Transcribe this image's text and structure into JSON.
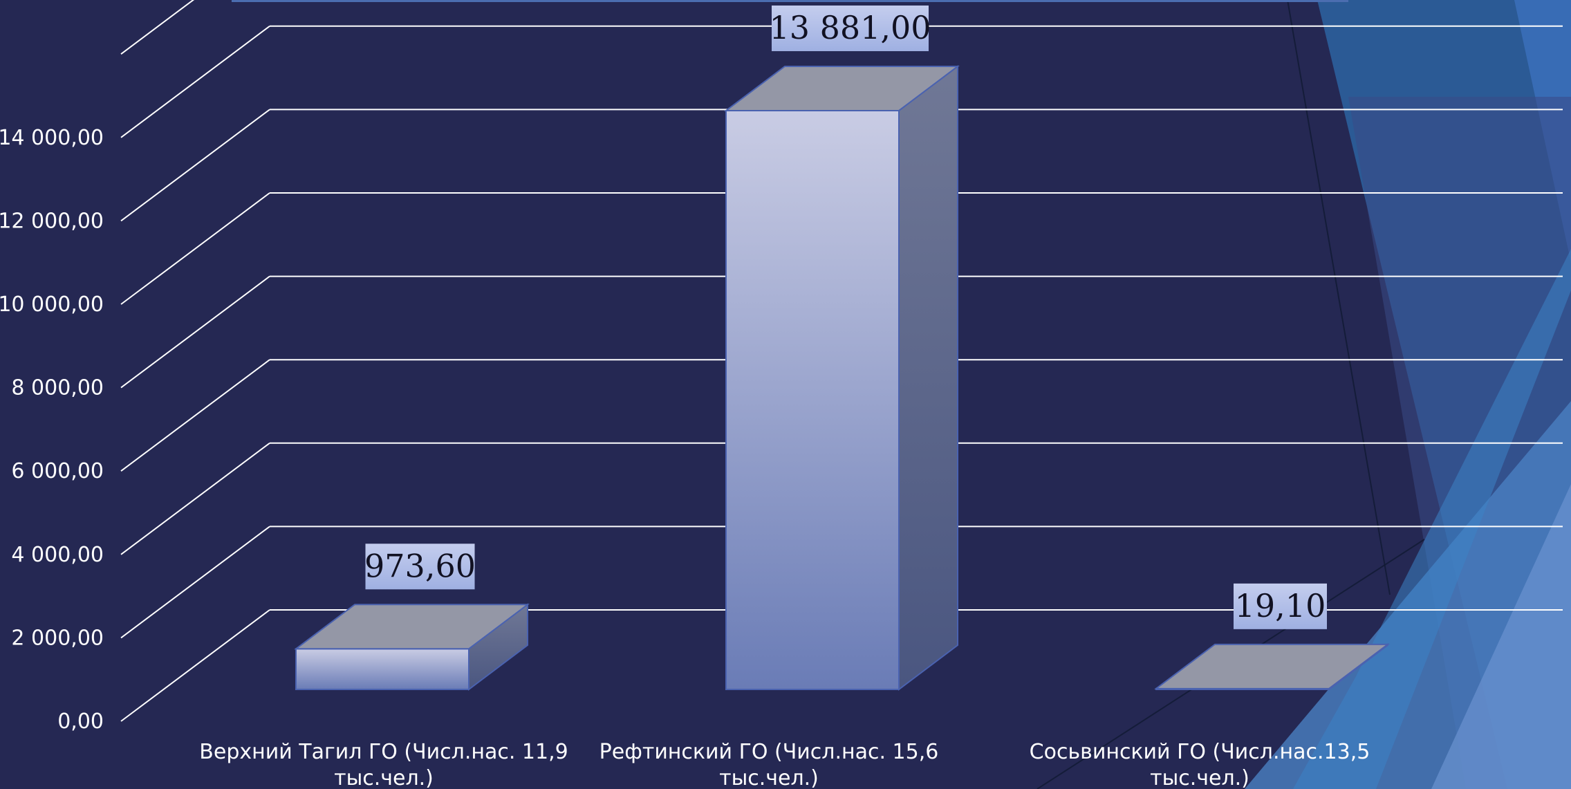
{
  "chart_data": {
    "type": "bar",
    "three_d": true,
    "categories": [
      [
        "Верхний Тагил ГО (Числ.нас. 11,9",
        "тыс.чел.)"
      ],
      [
        "Рефтинский ГО (Числ.нас. 15,6",
        "тыс.чел.)"
      ],
      [
        "Сосьвинский ГО (Числ.нас.13,5",
        "тыс.чел.)"
      ]
    ],
    "values": [
      973.6,
      13881.0,
      19.1
    ],
    "data_labels": [
      "973,60",
      "13 881,00",
      "19,10"
    ],
    "y_ticks": [
      "0,00",
      "2 000,00",
      "4 000,00",
      "6 000,00",
      "8 000,00",
      "10 000,00",
      "12 000,00",
      "14 000,00"
    ],
    "ylim": [
      0,
      16000
    ],
    "grid": true,
    "legend": "none",
    "title": "",
    "xlabel": "",
    "ylabel": ""
  },
  "colors": {
    "background": "#252853",
    "bar_front_top": "#c9cce4",
    "bar_front_bottom": "#6a7cb6",
    "bar_top": "#9497a6",
    "bar_side": "#55628a",
    "label_box": "#b3c1ea",
    "grid": "#ffffff"
  }
}
